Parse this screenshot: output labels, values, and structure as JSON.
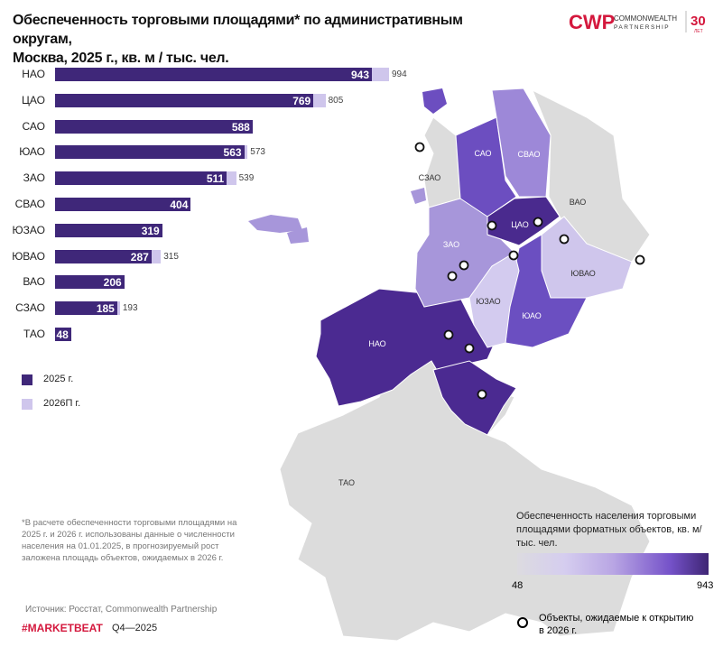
{
  "title_line1": "Обеспеченность торговыми площадями* по административным округам,",
  "title_line2": "Москва, 2025 г., кв. м / тыс. чел.",
  "logo": {
    "mark": "CWP",
    "name1": "COMMONWEALTH",
    "name2": "PARTNERSHIP",
    "years": "30",
    "years_unit": "ЛЕТ"
  },
  "colors": {
    "y2025": "#3f2779",
    "y2026": "#cfc6ec",
    "brand": "#d4183d",
    "no_data_map": "#dcdcdc"
  },
  "chart_data": {
    "type": "bar",
    "orientation": "horizontal",
    "categories": [
      "НАО",
      "ЦАО",
      "САО",
      "ЮАО",
      "ЗАО",
      "СВАО",
      "ЮЗАО",
      "ЮВАО",
      "ВАО",
      "СЗАО",
      "ТАО"
    ],
    "series": [
      {
        "name": "2025 г.",
        "values": [
          943,
          769,
          588,
          563,
          511,
          404,
          319,
          287,
          206,
          185,
          48
        ]
      },
      {
        "name": "2026П г.",
        "values": [
          994,
          805,
          588,
          573,
          539,
          404,
          319,
          315,
          206,
          193,
          48
        ]
      }
    ],
    "labels_2026": [
      "994",
      "805",
      "",
      "573",
      "539",
      "",
      "",
      "315",
      "",
      "193",
      ""
    ],
    "legend_placement": "bottom-left"
  },
  "legend": {
    "y2025": "2025 г.",
    "y2026": "2026П г."
  },
  "map": {
    "districts": [
      "САО",
      "СВАО",
      "СЗАО",
      "ВАО",
      "ЦАО",
      "ЗАО",
      "ЮВАО",
      "ЮЗАО",
      "ЮАО",
      "НАО",
      "ТАО"
    ],
    "scale_title": "Обеспеченность населения торговыми площадями форматных объектов, кв. м/тыс. чел.",
    "scale_min": "48",
    "scale_max": "943",
    "marker_legend": "Объекты, ожидаемые к открытию в 2026 г.",
    "marker_count": 11
  },
  "footnote": "*В расчете обеспеченности торговыми площадями на 2025 г. и 2026 г. использованы данные о численности населения на 01.01.2025, в прогнозируемый рост заложена площадь объектов, ожидаемых в 2026 г.",
  "source": "Источник: Росстат, Commonwealth Partnership",
  "marketbeat": "#MARKETBEAT",
  "period": "Q4—2025"
}
